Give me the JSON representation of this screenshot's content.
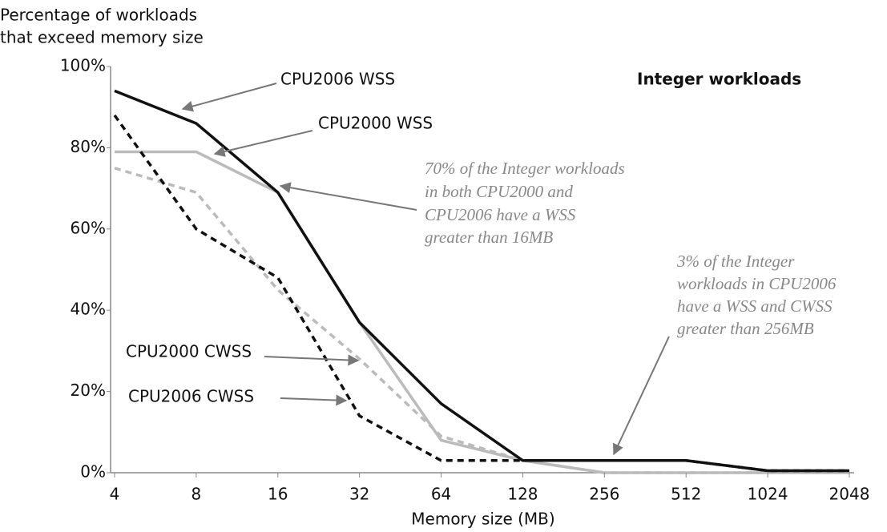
{
  "chart_data": {
    "type": "line",
    "title": "Integer workloads",
    "ylabel": [
      "Percentage of workloads",
      "that exceed memory size"
    ],
    "xlabel": "Memory size (MB)",
    "x": [
      4,
      8,
      16,
      32,
      64,
      128,
      256,
      512,
      1024,
      2048
    ],
    "xscale": "log",
    "xlim": [
      4,
      2048
    ],
    "xticks": [
      4,
      8,
      16,
      32,
      64,
      128,
      256,
      512,
      1024,
      2048
    ],
    "ylim": [
      0,
      100
    ],
    "yticks": [
      {
        "value": 0,
        "label": "0%"
      },
      {
        "value": 20,
        "label": "20%"
      },
      {
        "value": 40,
        "label": "40%"
      },
      {
        "value": 60,
        "label": "60%"
      },
      {
        "value": 80,
        "label": "80%"
      },
      {
        "value": 100,
        "label": "100%"
      }
    ],
    "series": [
      {
        "name": "CPU2006 WSS",
        "color": "#111111",
        "dash": false,
        "values": [
          94,
          86,
          69,
          37,
          17,
          3,
          3,
          3,
          0.5,
          0.5
        ]
      },
      {
        "name": "CPU2000 WSS",
        "color": "#bbbbbb",
        "dash": false,
        "values": [
          79,
          79,
          69,
          37,
          8,
          3,
          0,
          0,
          0,
          0
        ]
      },
      {
        "name": "CPU2000 CWSS",
        "color": "#bbbbbb",
        "dash": true,
        "values": [
          75,
          69,
          45,
          28,
          9,
          3,
          0,
          0,
          0,
          0
        ]
      },
      {
        "name": "CPU2006 CWSS",
        "color": "#111111",
        "dash": true,
        "values": [
          88,
          60,
          48,
          14,
          3,
          3,
          3,
          3,
          0.5,
          0.5
        ]
      }
    ],
    "annotations": [
      [
        "70% of the Integer workloads",
        "in both CPU2000 and",
        "CPU2006 have a WSS",
        "greater than 16MB"
      ],
      [
        "3% of the Integer",
        "workloads in CPU2006",
        "have a WSS and CWSS",
        "greater than 256MB"
      ]
    ]
  }
}
